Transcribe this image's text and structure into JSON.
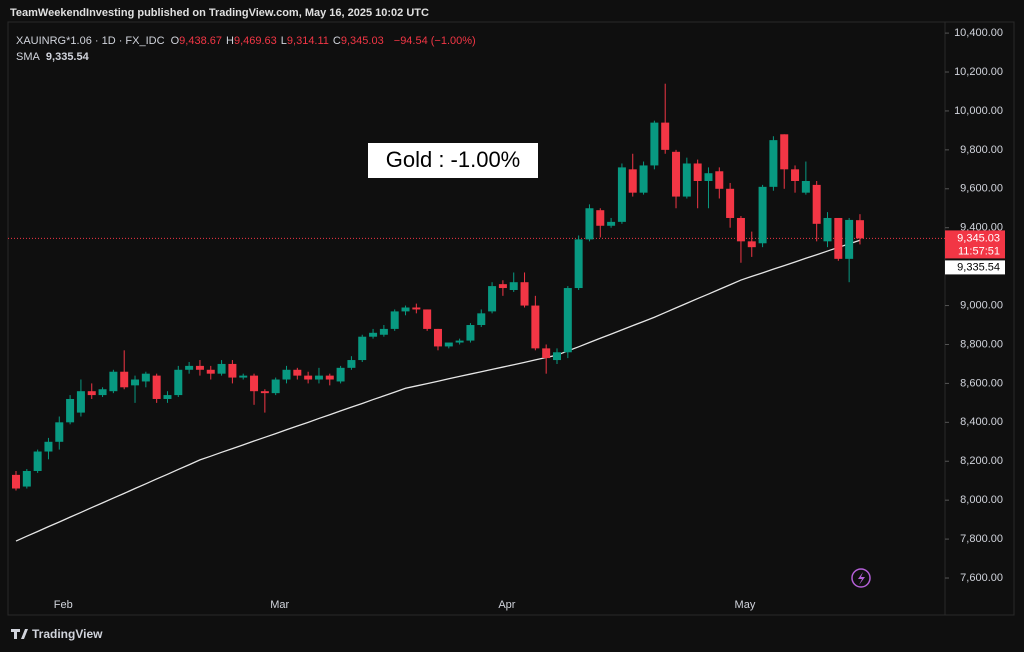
{
  "page": {
    "published": "TeamWeekendInvesting published on TradingView.com, May 16, 2025 10:02 UTC",
    "brand": "TradingView"
  },
  "chart_data": {
    "type": "candlestick",
    "symbol": "XAUINRG*1.06 · 1D · FX_IDC",
    "legend": {
      "items": [
        {
          "key": "O",
          "value": "9,438.67"
        },
        {
          "key": "H",
          "value": "9,469.63"
        },
        {
          "key": "L",
          "value": "9,314.11"
        },
        {
          "key": "C",
          "value": "9,345.03"
        }
      ],
      "change": "−94.54 (−1.00%)",
      "sma_value": "9,335.54"
    },
    "annotation": "Gold : -1.00%",
    "up_color": "#089981",
    "down_color": "#f23645",
    "categories": [
      null,
      null,
      null,
      null,
      "Feb",
      null,
      null,
      null,
      null,
      null,
      null,
      null,
      null,
      null,
      null,
      null,
      null,
      null,
      null,
      null,
      null,
      null,
      null,
      null,
      "Mar",
      null,
      null,
      null,
      null,
      null,
      null,
      null,
      null,
      null,
      null,
      null,
      null,
      null,
      null,
      null,
      null,
      null,
      null,
      null,
      null,
      "Apr",
      null,
      null,
      null,
      null,
      null,
      null,
      null,
      null,
      null,
      null,
      null,
      null,
      null,
      null,
      null,
      null,
      null,
      null,
      null,
      null,
      null,
      "May",
      null,
      null,
      null,
      null,
      null,
      null,
      null,
      null,
      null,
      null,
      null
    ],
    "ohlc": {
      "open": [
        8130,
        8070,
        8150,
        8250,
        8300,
        8400,
        8450,
        8560,
        8540,
        8560,
        8660,
        8590,
        8610,
        8640,
        8520,
        8540,
        8670,
        8690,
        8670,
        8650,
        8700,
        8630,
        8640,
        8560,
        8550,
        8620,
        8670,
        8640,
        8620,
        8640,
        8610,
        8680,
        8720,
        8840,
        8850,
        8880,
        8970,
        8990,
        8980,
        8880,
        8790,
        8810,
        8820,
        8900,
        8970,
        9110,
        9080,
        9120,
        9000,
        8780,
        8720,
        8760,
        9090,
        9340,
        9490,
        9410,
        9430,
        9700,
        9580,
        9720,
        9940,
        9790,
        9560,
        9730,
        9640,
        9690,
        9600,
        9450,
        9330,
        9320,
        9610,
        9880,
        9700,
        9580,
        9620,
        9330,
        9450,
        9240,
        9438.67
      ],
      "high": [
        8150,
        8160,
        8260,
        8320,
        8430,
        8540,
        8620,
        8600,
        8580,
        8670,
        8770,
        8640,
        8660,
        8650,
        8560,
        8690,
        8710,
        8720,
        8690,
        8720,
        8720,
        8650,
        8650,
        8570,
        8630,
        8690,
        8680,
        8660,
        8680,
        8650,
        8690,
        8740,
        8850,
        8880,
        8900,
        8980,
        9000,
        9010,
        8980,
        8880,
        8810,
        8830,
        8910,
        8980,
        9120,
        9130,
        9170,
        9170,
        9050,
        8800,
        8780,
        9100,
        9360,
        9520,
        9500,
        9450,
        9730,
        9780,
        9740,
        9950,
        10140,
        9800,
        9760,
        9750,
        9710,
        9710,
        9630,
        9460,
        9380,
        9620,
        9870,
        9880,
        9720,
        9740,
        9640,
        9480,
        9450,
        9450,
        9469.63
      ],
      "low": [
        8050,
        8060,
        8140,
        8210,
        8260,
        8390,
        8430,
        8520,
        8530,
        8550,
        8570,
        8500,
        8580,
        8500,
        8500,
        8530,
        8650,
        8640,
        8620,
        8640,
        8600,
        8620,
        8490,
        8450,
        8540,
        8600,
        8620,
        8600,
        8600,
        8590,
        8600,
        8670,
        8710,
        8830,
        8840,
        8870,
        8950,
        8960,
        8870,
        8770,
        8780,
        8800,
        8810,
        8890,
        8960,
        9050,
        9070,
        8990,
        8770,
        8650,
        8700,
        8730,
        9080,
        9330,
        9350,
        9400,
        9420,
        9560,
        9570,
        9700,
        9780,
        9500,
        9550,
        9500,
        9500,
        9550,
        9400,
        9220,
        9250,
        9300,
        9590,
        9600,
        9580,
        9570,
        9330,
        9300,
        9230,
        9120,
        9314.11
      ],
      "close": [
        8060,
        8150,
        8250,
        8300,
        8400,
        8520,
        8560,
        8540,
        8570,
        8660,
        8580,
        8620,
        8650,
        8520,
        8540,
        8670,
        8690,
        8670,
        8650,
        8700,
        8630,
        8640,
        8560,
        8550,
        8620,
        8670,
        8640,
        8620,
        8640,
        8620,
        8680,
        8720,
        8840,
        8860,
        8880,
        8970,
        8990,
        8980,
        8880,
        8790,
        8810,
        8820,
        8900,
        8960,
        9100,
        9090,
        9120,
        9000,
        8780,
        8730,
        8760,
        9090,
        9340,
        9500,
        9410,
        9430,
        9710,
        9580,
        9720,
        9940,
        9800,
        9560,
        9730,
        9640,
        9680,
        9600,
        9450,
        9330,
        9300,
        9610,
        9850,
        9700,
        9640,
        9640,
        9420,
        9450,
        9240,
        9440,
        9345.03
      ]
    },
    "sma": {
      "name": "SMA",
      "color": "#e6e6e6",
      "values": [
        7790,
        7815,
        7839,
        7864,
        7888,
        7913,
        7937,
        7962,
        7986,
        8011,
        8035,
        8060,
        8084,
        8109,
        8133,
        8158,
        8182,
        8207,
        8226,
        8246,
        8265,
        8284,
        8304,
        8323,
        8342,
        8362,
        8381,
        8400,
        8420,
        8439,
        8459,
        8478,
        8497,
        8517,
        8536,
        8555,
        8575,
        8587,
        8599,
        8611,
        8624,
        8636,
        8648,
        8660,
        8672,
        8684,
        8696,
        8708,
        8721,
        8733,
        8745,
        8767,
        8788,
        8810,
        8832,
        8853,
        8875,
        8897,
        8918,
        8940,
        8964,
        8988,
        9012,
        9036,
        9059,
        9083,
        9107,
        9131,
        9150,
        9168,
        9187,
        9205,
        9224,
        9243,
        9261,
        9280,
        9299,
        9317,
        9335.54
      ]
    },
    "ylim": [
      7410,
      10457
    ],
    "yticks": [
      {
        "value": 7600,
        "label": "7,600.00"
      },
      {
        "value": 7800,
        "label": "7,800.00"
      },
      {
        "value": 8000,
        "label": "8,000.00"
      },
      {
        "value": 8200,
        "label": "8,200.00"
      },
      {
        "value": 8400,
        "label": "8,400.00"
      },
      {
        "value": 8600,
        "label": "8,600.00"
      },
      {
        "value": 8800,
        "label": "8,800.00"
      },
      {
        "value": 9000,
        "label": "9,000.00"
      },
      {
        "value": 9200,
        "label": "9,200.00"
      },
      {
        "value": 9400,
        "label": "9,400.00"
      },
      {
        "value": 9600,
        "label": "9,600.00"
      },
      {
        "value": 9800,
        "label": "9,800.00"
      },
      {
        "value": 10000,
        "label": "10,000.00"
      },
      {
        "value": 10200,
        "label": "10,200.00"
      },
      {
        "value": 10400,
        "label": "10,400.00"
      }
    ],
    "grid": false,
    "last_price": {
      "value": 9345.03,
      "label": "9,345.03",
      "countdown": "11:57:51"
    },
    "sma_last": {
      "value": 9335.54,
      "label": "9,335.54"
    }
  }
}
